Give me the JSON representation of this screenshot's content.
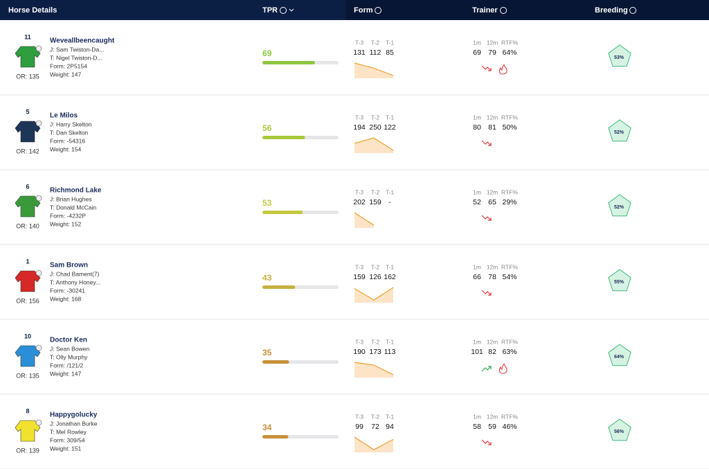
{
  "header": {
    "columns": [
      "Horse Details",
      "TPR",
      "Form",
      "Trainer",
      "Breeding"
    ]
  },
  "form_labels": [
    "T-3",
    "T-2",
    "T-1"
  ],
  "trainer_labels": [
    "1m",
    "12m",
    "RTF%"
  ],
  "rows": [
    {
      "number": "11",
      "name": "Weveallbeencaught",
      "jockey": "J: Sam Twiston-Da...",
      "trainer": "T: Nigel Twiston-D...",
      "form": "Form: 2P5154",
      "weight": "Weight: 147",
      "rating": "OR: 135",
      "tpr": 69,
      "tpr_color": "#8dc63f",
      "form_figures": [
        131,
        112,
        85
      ],
      "trainer_stats": [
        69,
        79,
        "64%"
      ],
      "trend": "down",
      "hot": true,
      "breeding": "53%",
      "silk_color": "#2e9e3e"
    },
    {
      "number": "5",
      "name": "Le Milos",
      "jockey": "J: Harry Skelton",
      "trainer": "T: Dan Skelton",
      "form": "Form: -54316",
      "weight": "Weight: 154",
      "rating": "OR: 142",
      "tpr": 56,
      "tpr_color": "#a8c83a",
      "form_figures": [
        194,
        250,
        122
      ],
      "trainer_stats": [
        80,
        81,
        "50%"
      ],
      "trend": "down",
      "hot": false,
      "breeding": "52%",
      "silk_color": "#1d3557"
    },
    {
      "number": "6",
      "name": "Richmond Lake",
      "jockey": "J: Brian Hughes",
      "trainer": "T: Donald McCain",
      "form": "Form: -4232P",
      "weight": "Weight: 152",
      "rating": "OR: 140",
      "tpr": 53,
      "tpr_color": "#c2c840",
      "form_figures": [
        202,
        159,
        "-"
      ],
      "trainer_stats": [
        52,
        65,
        "29%"
      ],
      "trend": "down",
      "hot": false,
      "breeding": "52%",
      "silk_color": "#3a9a3a"
    },
    {
      "number": "1",
      "name": "Sam Brown",
      "jockey": "J: Chad Bament(7)",
      "trainer": "T: Anthony Honey...",
      "form": "Form: -30241",
      "weight": "Weight: 168",
      "rating": "OR: 156",
      "tpr": 43,
      "tpr_color": "#c9b040",
      "form_figures": [
        159,
        126,
        162
      ],
      "trainer_stats": [
        66,
        78,
        "54%"
      ],
      "trend": "down",
      "hot": false,
      "breeding": "55%",
      "silk_color": "#d62828"
    },
    {
      "number": "10",
      "name": "Doctor Ken",
      "jockey": "J: Sean Bowen",
      "trainer": "T: Olly Murphy",
      "form": "Form: /121/2",
      "weight": "Weight: 147",
      "rating": "OR: 135",
      "tpr": 35,
      "tpr_color": "#c8903a",
      "form_figures": [
        190,
        173,
        113
      ],
      "trainer_stats": [
        101,
        82,
        "63%"
      ],
      "trend": "up",
      "hot": true,
      "breeding": "64%",
      "silk_color": "#2a8fd6"
    },
    {
      "number": "8",
      "name": "Happygolucky",
      "jockey": "J: Jonathan Burke",
      "trainer": "T: Mel Rowley",
      "form": "Form: 309/54",
      "weight": "Weight: 151",
      "rating": "OR: 139",
      "tpr": 34,
      "tpr_color": "#c8903a",
      "form_figures": [
        99,
        72,
        94
      ],
      "trainer_stats": [
        58,
        59,
        "46%"
      ],
      "trend": "down",
      "hot": false,
      "breeding": "56%",
      "silk_color": "#f2e230"
    }
  ]
}
